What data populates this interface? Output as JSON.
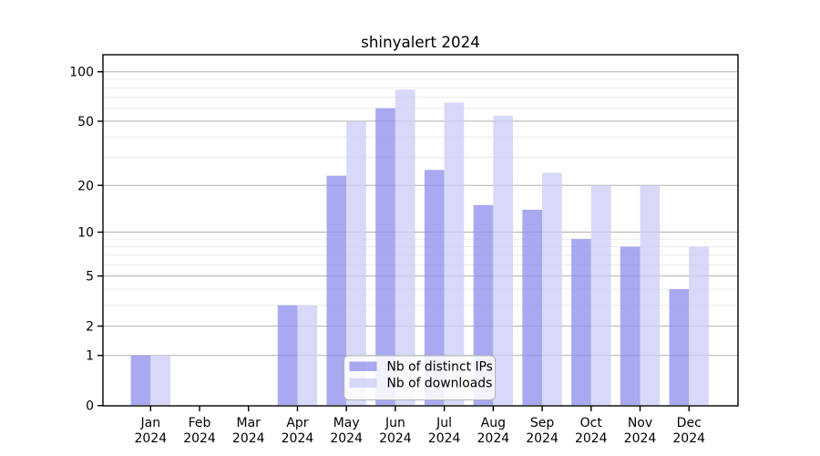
{
  "chart_data": {
    "type": "bar",
    "title": "shinyalert 2024",
    "categories": [
      "Jan",
      "Feb",
      "Mar",
      "Apr",
      "May",
      "Jun",
      "Jul",
      "Aug",
      "Sep",
      "Oct",
      "Nov",
      "Dec"
    ],
    "year_label": "2024",
    "series": [
      {
        "name": "Nb of distinct IPs",
        "values": [
          1,
          0,
          0,
          3,
          23,
          60,
          25,
          15,
          14,
          9,
          8,
          4
        ],
        "color": "rgba(145,145,238,0.78)",
        "solid_color": "#a9a9f2"
      },
      {
        "name": "Nb of downloads",
        "values": [
          1,
          0,
          0,
          3,
          50,
          78,
          65,
          54,
          24,
          20,
          20,
          8
        ],
        "color": "rgba(206,206,246,0.80)",
        "solid_color": "#d8d8f8"
      }
    ],
    "y_scale": "log1p",
    "y_ticks": [
      0,
      1,
      2,
      5,
      10,
      20,
      50,
      100
    ],
    "y_tick_labels": [
      "0",
      "1",
      "2",
      "5",
      "10",
      "20",
      "50",
      "100"
    ],
    "minor_gridlines": [
      3,
      4,
      6,
      7,
      8,
      9,
      30,
      40,
      60,
      70,
      80,
      90
    ],
    "ylim": [
      0,
      127
    ],
    "grid": {
      "major_color": "#b0b0b0",
      "minor_color": "#e9e9e9",
      "grid_on": true
    },
    "axis_color": "#000000",
    "legend": {
      "position": "bottom-center-inside",
      "background": "rgba(255,255,255,0.85)",
      "border_color": "#b3b3b3",
      "entries": [
        "Nb of distinct IPs",
        "Nb of downloads"
      ]
    }
  }
}
